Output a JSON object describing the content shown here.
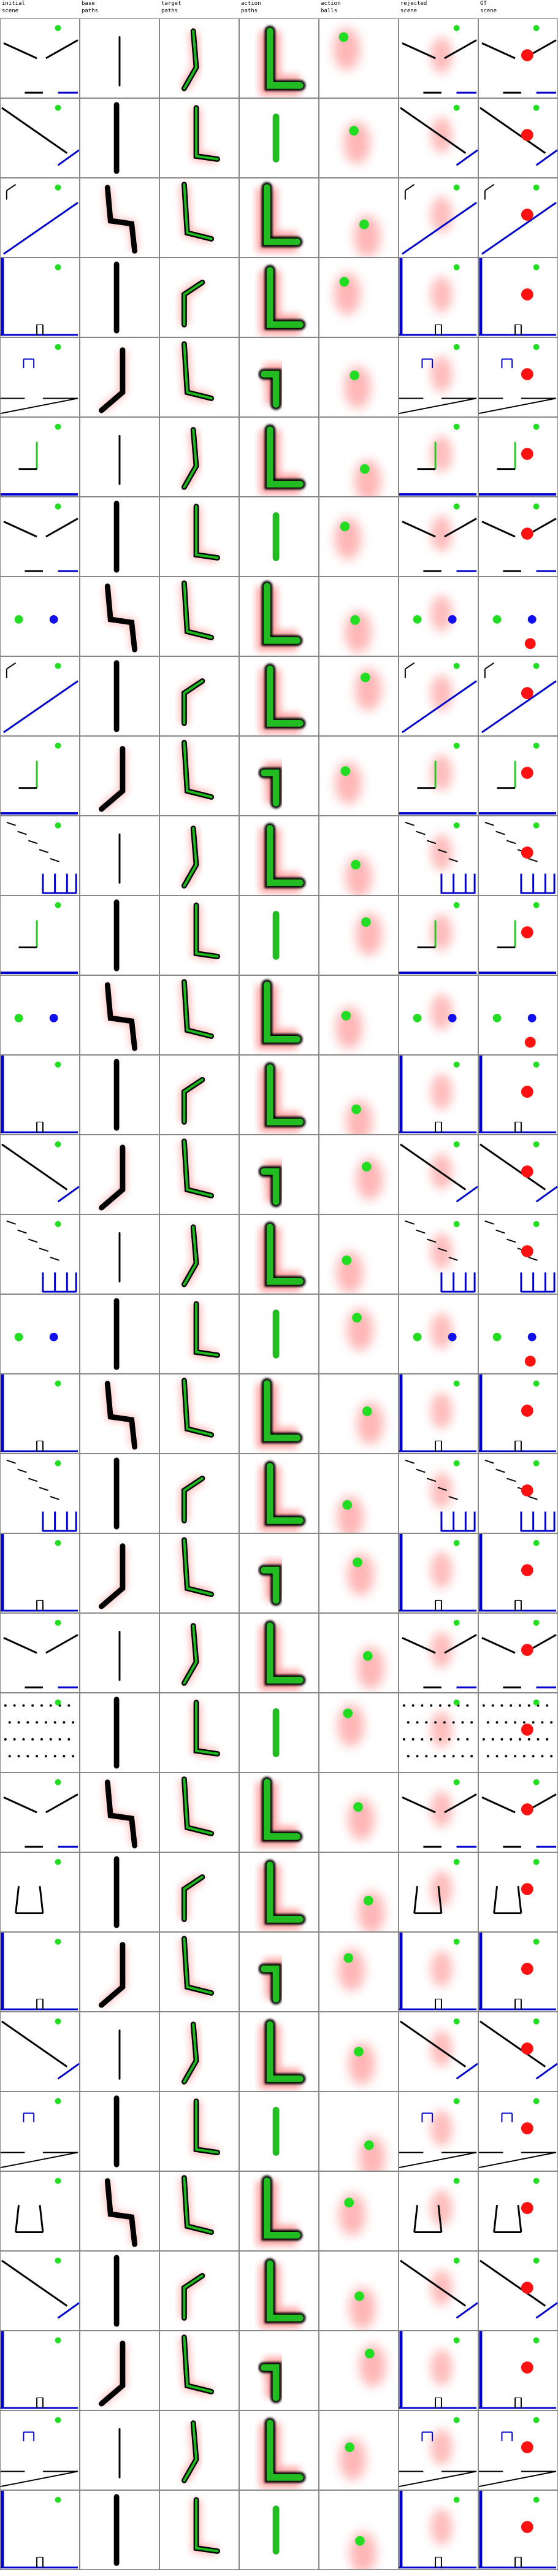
{
  "headers": [
    "initial\nscene",
    "base\npaths",
    "target\npaths",
    "action\npaths",
    "action\nballs",
    "rejected\nscene",
    "GT\nscene"
  ],
  "colors": {
    "green_ball": "#22dd22",
    "blue_ball": "#1010ee",
    "red_ball": "#ff1111",
    "wall_blue": "#0000cc",
    "path_black": "#000000",
    "heat_red": "#ff7a7a",
    "border": "#888888"
  },
  "rows": [
    {
      "kind": "V"
    },
    {
      "kind": "slope"
    },
    {
      "kind": "lbox"
    },
    {
      "kind": "wall"
    },
    {
      "kind": "cup"
    },
    {
      "kind": "lshape"
    },
    {
      "kind": "V"
    },
    {
      "kind": "twoballs"
    },
    {
      "kind": "lbox"
    },
    {
      "kind": "lshape2"
    },
    {
      "kind": "stairs"
    },
    {
      "kind": "lshape"
    },
    {
      "kind": "twoballs2"
    },
    {
      "kind": "wall"
    },
    {
      "kind": "slope"
    },
    {
      "kind": "stairs2"
    },
    {
      "kind": "twoballs3"
    },
    {
      "kind": "wall2"
    },
    {
      "kind": "stairs"
    },
    {
      "kind": "wall2"
    },
    {
      "kind": "V"
    },
    {
      "kind": "dots"
    },
    {
      "kind": "V2"
    },
    {
      "kind": "bucket"
    },
    {
      "kind": "wall"
    },
    {
      "kind": "slope2"
    },
    {
      "kind": "cup"
    },
    {
      "kind": "bucket2"
    },
    {
      "kind": "slope2"
    },
    {
      "kind": "wall3"
    },
    {
      "kind": "cup2"
    },
    {
      "kind": "wall4"
    }
  ]
}
